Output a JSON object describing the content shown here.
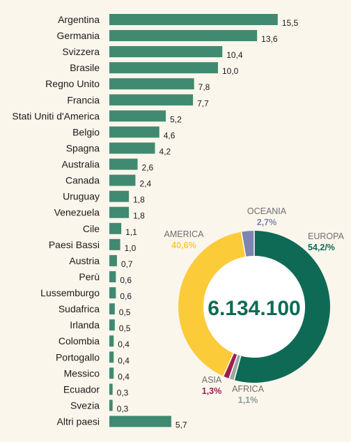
{
  "chart_data": [
    {
      "type": "bar",
      "orientation": "horizontal",
      "categories": [
        "Argentina",
        "Germania",
        "Svizzera",
        "Brasile",
        "Regno Unito",
        "Francia",
        "Stati Uniti d'America",
        "Belgio",
        "Spagna",
        "Australia",
        "Canada",
        "Uruguay",
        "Venezuela",
        "Cile",
        "Paesi Bassi",
        "Austria",
        "Perù",
        "Lussemburgo",
        "Sudafrica",
        "Irlanda",
        "Colombia",
        "Portogallo",
        "Messico",
        "Ecuador",
        "Svezia",
        "Altri paesi"
      ],
      "values": [
        15.5,
        13.6,
        10.4,
        10.0,
        7.8,
        7.7,
        5.2,
        4.6,
        4.2,
        2.6,
        2.4,
        1.8,
        1.8,
        1.1,
        1.0,
        0.7,
        0.6,
        0.6,
        0.5,
        0.5,
        0.4,
        0.4,
        0.4,
        0.3,
        0.3,
        5.7
      ],
      "value_labels": [
        "15,5",
        "13,6",
        "10,4",
        "10,0",
        "7,8",
        "7,7",
        "5,2",
        "4,6",
        "4,2",
        "2,6",
        "2,4",
        "1,8",
        "1,8",
        "1,1",
        "1,0",
        "0,7",
        "0,6",
        "0,6",
        "0,5",
        "0,5",
        "0,4",
        "0,4",
        "0,4",
        "0,3",
        "0,3",
        "5,7"
      ],
      "color": "#3f8a70"
    },
    {
      "type": "pie",
      "variant": "donut",
      "total_label": "6.134.100",
      "slices": [
        {
          "name": "EUROPA",
          "pct_label": "54,2/%",
          "value": 54.2,
          "color": "#0e6a55"
        },
        {
          "name": "AFRICA",
          "pct_label": "1,1%",
          "value": 1.1,
          "color": "#9aa8a2"
        },
        {
          "name": "ASIA",
          "pct_label": "1,3%",
          "value": 1.3,
          "color": "#a01c4c"
        },
        {
          "name": "AMERICA",
          "pct_label": "40,6%",
          "value": 40.6,
          "color": "#fbcb3a"
        },
        {
          "name": "OCEANIA",
          "pct_label": "2,7%",
          "value": 2.7,
          "color": "#7b86b2"
        }
      ]
    }
  ]
}
